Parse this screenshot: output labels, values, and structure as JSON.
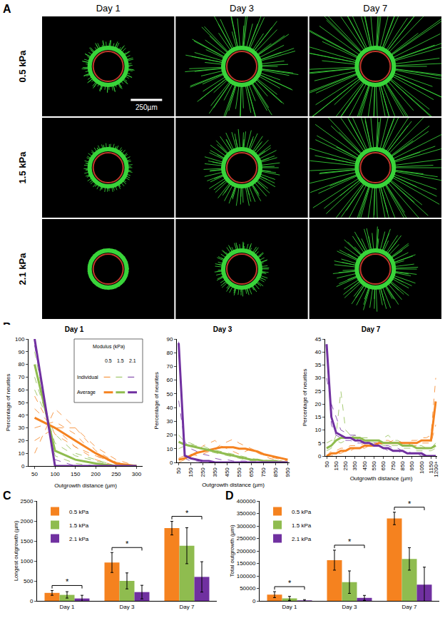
{
  "image_grid": {
    "panel": "A",
    "columns": [
      "Day 1",
      "Day 3",
      "Day 7"
    ],
    "rows": [
      "0.5 kPa",
      "1.5 kPa",
      "2.1 kPa"
    ],
    "scale_bar": "250µm"
  },
  "chart_data": [
    {
      "type": "line",
      "panel": "B",
      "title": "Day 1",
      "x_label": "Outgrowth distance (µm)",
      "y_label": "Percentage of neurites",
      "categories": [
        "50",
        "100",
        "150",
        "200",
        "250",
        "300"
      ],
      "ylim": [
        0,
        100
      ],
      "yticks": [
        0,
        10,
        20,
        30,
        40,
        50,
        60,
        70,
        80,
        90,
        100
      ],
      "grid": false,
      "legend_table": {
        "title": "Modulus (kPa)",
        "columns": [
          "0.5",
          "1.5",
          "2.1"
        ],
        "rows": [
          {
            "label": "Individual",
            "line_style": "dashed"
          },
          {
            "label": "Average",
            "line_style": "solid"
          }
        ]
      },
      "series": [
        {
          "name": "0.5",
          "color": "#f5821f",
          "line_style": "dashed",
          "values": [
            55,
            25,
            15,
            5,
            0,
            0
          ]
        },
        {
          "name": "0.5",
          "color": "#f5821f",
          "line_style": "dashed",
          "values": [
            30,
            35,
            25,
            8,
            2,
            0
          ]
        },
        {
          "name": "0.5",
          "color": "#f5821f",
          "line_style": "dashed",
          "values": [
            20,
            30,
            30,
            15,
            5,
            0
          ]
        },
        {
          "name": "0.5",
          "color": "#f5821f",
          "line_style": "dashed",
          "values": [
            45,
            30,
            15,
            8,
            2,
            0
          ]
        },
        {
          "name": "0.5",
          "color": "#f5821f",
          "line_style": "dashed",
          "values": [
            10,
            45,
            30,
            12,
            3,
            0
          ]
        },
        {
          "name": "1.5",
          "color": "#8fbc4f",
          "line_style": "dashed",
          "values": [
            90,
            8,
            2,
            0,
            0,
            0
          ]
        },
        {
          "name": "1.5",
          "color": "#8fbc4f",
          "line_style": "dashed",
          "values": [
            70,
            18,
            8,
            4,
            0,
            0
          ]
        },
        {
          "name": "1.5",
          "color": "#8fbc4f",
          "line_style": "dashed",
          "values": [
            60,
            25,
            10,
            5,
            0,
            0
          ]
        },
        {
          "name": "2.1",
          "color": "#7030a0",
          "line_style": "dashed",
          "values": [
            95,
            5,
            0,
            0,
            0,
            0
          ]
        },
        {
          "name": "0.5",
          "color": "#f5821f",
          "line_style": "solid",
          "values": [
            38,
            30,
            20,
            10,
            2,
            0
          ]
        },
        {
          "name": "1.5",
          "color": "#8fbc4f",
          "line_style": "solid",
          "values": [
            80,
            12,
            5,
            2,
            0,
            0
          ]
        },
        {
          "name": "2.1",
          "color": "#7030a0",
          "line_style": "solid",
          "values": [
            100,
            0,
            0,
            0,
            0,
            0
          ]
        }
      ]
    },
    {
      "type": "line",
      "title": "Day 3",
      "x_label": "Outgrowth distance (µm)",
      "y_label": "Percentage of neurites",
      "categories": [
        "50",
        null,
        "150",
        null,
        "250",
        null,
        "350",
        null,
        "450",
        null,
        "550",
        null,
        "650",
        null,
        "750",
        null,
        "850",
        null,
        "950"
      ],
      "ylim": [
        0,
        90
      ],
      "yticks": [
        0,
        10,
        20,
        30,
        40,
        50,
        60,
        70,
        80,
        90
      ],
      "grid": false,
      "series": [
        {
          "name": "0.5",
          "color": "#f5821f",
          "line_style": "dashed",
          "values": [
            0,
            2,
            4,
            8,
            12,
            14,
            16,
            12,
            10,
            8,
            6,
            8,
            10,
            7,
            5,
            3,
            2,
            1,
            0
          ]
        },
        {
          "name": "0.5",
          "color": "#f5821f",
          "line_style": "dashed",
          "values": [
            3,
            5,
            6,
            5,
            6,
            8,
            10,
            13,
            15,
            17,
            14,
            12,
            10,
            8,
            6,
            4,
            3,
            2,
            1
          ]
        },
        {
          "name": "1.5",
          "color": "#8fbc4f",
          "line_style": "dashed",
          "values": [
            20,
            15,
            14,
            12,
            10,
            8,
            7,
            6,
            5,
            4,
            3,
            2,
            1,
            1,
            0,
            0,
            0,
            0,
            0
          ]
        },
        {
          "name": "1.5",
          "color": "#8fbc4f",
          "line_style": "dashed",
          "values": [
            10,
            12,
            13,
            12,
            12,
            10,
            9,
            8,
            7,
            6,
            5,
            4,
            3,
            2,
            2,
            1,
            1,
            1,
            0
          ]
        },
        {
          "name": "2.1",
          "color": "#7030a0",
          "line_style": "dashed",
          "values": [
            45,
            15,
            10,
            8,
            6,
            5,
            3,
            2,
            2,
            1,
            1,
            1,
            0,
            0,
            0,
            0,
            0,
            0,
            0
          ]
        },
        {
          "name": "2.1",
          "color": "#7030a0",
          "line_style": "dashed",
          "values": [
            88,
            3,
            1,
            1,
            0,
            0,
            0,
            0,
            0,
            0,
            0,
            0,
            0,
            0,
            0,
            0,
            0,
            0,
            0
          ]
        },
        {
          "name": "0.5",
          "color": "#f5821f",
          "line_style": "solid",
          "values": [
            2,
            3,
            5,
            7,
            8,
            9,
            10,
            11,
            11,
            11,
            10,
            10,
            9,
            8,
            6,
            5,
            4,
            3,
            2
          ]
        },
        {
          "name": "1.5",
          "color": "#8fbc4f",
          "line_style": "solid",
          "values": [
            15,
            13,
            12,
            11,
            10,
            9,
            8,
            7,
            6,
            5,
            4,
            3,
            2,
            2,
            1,
            1,
            1,
            0,
            0
          ]
        },
        {
          "name": "2.1",
          "color": "#7030a0",
          "line_style": "solid",
          "values": [
            87,
            5,
            3,
            2,
            1,
            1,
            0,
            0,
            0,
            0,
            0,
            0,
            0,
            0,
            0,
            0,
            0,
            0,
            0
          ]
        }
      ]
    },
    {
      "type": "line",
      "title": "Day 7",
      "x_label": "Outgrowth distance (µm)",
      "y_label": "Percentage of neurites",
      "categories": [
        "50",
        null,
        "150",
        null,
        "250",
        null,
        "350",
        null,
        "450",
        null,
        "550",
        null,
        "650",
        null,
        "750",
        null,
        "850",
        null,
        "950",
        null,
        "1050",
        null,
        "1150",
        "1200+"
      ],
      "ylim": [
        0,
        45
      ],
      "yticks": [
        0,
        5,
        10,
        15,
        20,
        25,
        30,
        35,
        40,
        45
      ],
      "grid": false,
      "series": [
        {
          "name": "0.5",
          "color": "#f5821f",
          "line_style": "dashed",
          "values": [
            0,
            0,
            1,
            1,
            2,
            2,
            3,
            3,
            3,
            4,
            4,
            5,
            5,
            5,
            6,
            6,
            5,
            5,
            6,
            6,
            7,
            7,
            8,
            30
          ]
        },
        {
          "name": "0.5",
          "color": "#f5821f",
          "line_style": "dashed",
          "values": [
            0,
            2,
            2,
            3,
            3,
            4,
            4,
            4,
            5,
            5,
            5,
            5,
            6,
            6,
            5,
            5,
            5,
            4,
            4,
            4,
            5,
            5,
            5,
            12
          ]
        },
        {
          "name": "1.5",
          "color": "#8fbc4f",
          "line_style": "dashed",
          "values": [
            2,
            3,
            8,
            25,
            10,
            8,
            7,
            6,
            6,
            5,
            5,
            5,
            4,
            4,
            4,
            4,
            3,
            3,
            3,
            2,
            2,
            2,
            2,
            3
          ]
        },
        {
          "name": "1.5",
          "color": "#8fbc4f",
          "line_style": "dashed",
          "values": [
            5,
            6,
            6,
            5,
            6,
            7,
            8,
            7,
            7,
            7,
            6,
            6,
            7,
            8,
            6,
            6,
            5,
            5,
            4,
            4,
            4,
            3,
            3,
            5
          ]
        },
        {
          "name": "2.1",
          "color": "#7030a0",
          "line_style": "dashed",
          "values": [
            30,
            20,
            15,
            10,
            9,
            8,
            8,
            7,
            6,
            6,
            5,
            5,
            4,
            4,
            3,
            3,
            2,
            2,
            1,
            1,
            1,
            0,
            0,
            0
          ]
        },
        {
          "name": "2.1",
          "color": "#7030a0",
          "line_style": "dashed",
          "values": [
            43,
            12,
            8,
            7,
            6,
            6,
            5,
            5,
            5,
            4,
            4,
            3,
            3,
            2,
            2,
            2,
            1,
            1,
            1,
            1,
            0,
            0,
            0,
            0
          ]
        },
        {
          "name": "0.5",
          "color": "#f5821f",
          "line_style": "solid",
          "values": [
            0,
            1,
            1,
            2,
            2,
            3,
            3,
            3,
            4,
            4,
            4,
            5,
            5,
            5,
            5,
            5,
            5,
            5,
            5,
            5,
            6,
            6,
            6,
            21
          ]
        },
        {
          "name": "1.5",
          "color": "#8fbc4f",
          "line_style": "solid",
          "values": [
            3,
            4,
            6,
            7,
            7,
            7,
            7,
            7,
            6,
            6,
            6,
            6,
            5,
            5,
            5,
            5,
            4,
            4,
            4,
            3,
            3,
            3,
            3,
            4
          ]
        },
        {
          "name": "2.1",
          "color": "#7030a0",
          "line_style": "solid",
          "values": [
            43,
            15,
            9,
            8,
            7,
            7,
            6,
            6,
            5,
            5,
            4,
            4,
            3,
            3,
            2,
            2,
            2,
            1,
            1,
            1,
            1,
            0,
            0,
            0
          ]
        }
      ]
    },
    {
      "type": "bar",
      "panel": "C",
      "y_label": "Longest outgrowth (µm)",
      "categories": [
        "Day 1",
        "Day 3",
        "Day 7"
      ],
      "ylim": [
        0,
        2500
      ],
      "yticks": [
        0,
        500,
        1000,
        1500,
        2000,
        2500
      ],
      "grid": false,
      "legend": "top-left",
      "series": [
        {
          "name": "0.5 kPa",
          "color": "#f5821f",
          "values": [
            200,
            960,
            1820
          ],
          "errors": [
            60,
            250,
            170
          ]
        },
        {
          "name": "1.5 kPa",
          "color": "#8fbc4f",
          "values": [
            150,
            500,
            1380
          ],
          "errors": [
            80,
            200,
            450
          ]
        },
        {
          "name": "2.1 kPa",
          "color": "#7030a0",
          "values": [
            60,
            220,
            600
          ],
          "errors": [
            80,
            170,
            380
          ]
        }
      ],
      "significance": [
        {
          "category": "Day 1",
          "from": "0.5 kPa",
          "to": "2.1 kPa",
          "label": "*"
        },
        {
          "category": "Day 3",
          "from": "0.5 kPa",
          "to": "2.1 kPa",
          "label": "*"
        },
        {
          "category": "Day 7",
          "from": "0.5 kPa",
          "to": "2.1 kPa",
          "label": "*"
        }
      ]
    },
    {
      "type": "bar",
      "panel": "D",
      "y_label": "Total outgrowth (µm)",
      "categories": [
        "Day 1",
        "Day 3",
        "Day 7"
      ],
      "ylim": [
        0,
        400000
      ],
      "yticks": [
        0,
        50000,
        100000,
        150000,
        200000,
        250000,
        300000,
        350000,
        400000
      ],
      "grid": false,
      "legend": "top-left",
      "series": [
        {
          "name": "0.5 kPa",
          "color": "#f5821f",
          "values": [
            25000,
            163000,
            330000
          ],
          "errors": [
            12000,
            40000,
            25000
          ]
        },
        {
          "name": "1.5 kPa",
          "color": "#8fbc4f",
          "values": [
            10000,
            75000,
            168000
          ],
          "errors": [
            8000,
            45000,
            45000
          ]
        },
        {
          "name": "2.1 kPa",
          "color": "#7030a0",
          "values": [
            2000,
            12000,
            65000
          ],
          "errors": [
            3000,
            10000,
            70000
          ]
        }
      ],
      "significance": [
        {
          "category": "Day 1",
          "from": "0.5 kPa",
          "to": "2.1 kPa",
          "label": "*"
        },
        {
          "category": "Day 3",
          "from": "0.5 kPa",
          "to": "2.1 kPa",
          "label": "*"
        },
        {
          "category": "Day 7",
          "from": "0.5 kPa",
          "to": "2.1 kPa",
          "label": "*"
        }
      ]
    }
  ]
}
